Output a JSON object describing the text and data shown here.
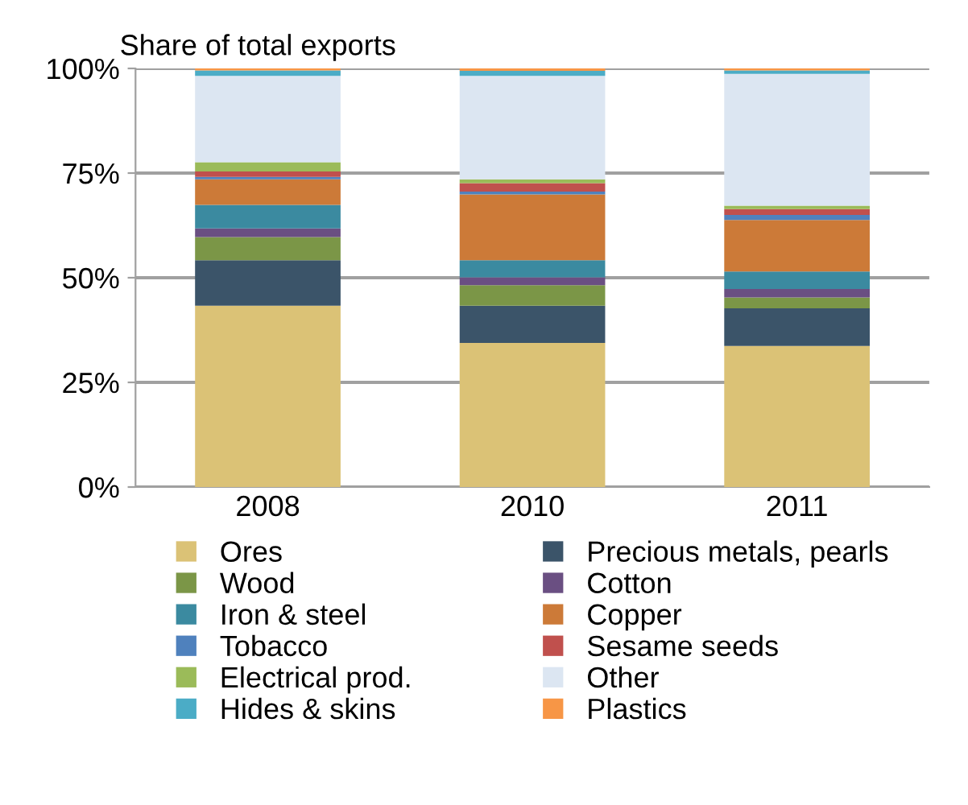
{
  "chart_data": {
    "type": "bar",
    "stacked": true,
    "title": "Share of total exports",
    "categories": [
      "2008",
      "2010",
      "2011"
    ],
    "series": [
      {
        "name": "Ores",
        "color": "#dbc276",
        "values": [
          43.3,
          34.4,
          33.7
        ]
      },
      {
        "name": "Precious metals, pearls",
        "color": "#3b5469",
        "values": [
          10.9,
          8.9,
          9.0
        ]
      },
      {
        "name": "Wood",
        "color": "#7b9647",
        "values": [
          5.5,
          4.9,
          2.6
        ]
      },
      {
        "name": "Cotton",
        "color": "#6a4f82",
        "values": [
          2.1,
          1.9,
          2.0
        ]
      },
      {
        "name": "Iron & steel",
        "color": "#3b8aa0",
        "values": [
          5.6,
          4.1,
          4.2
        ]
      },
      {
        "name": "Copper",
        "color": "#cc7a38",
        "values": [
          6.1,
          15.7,
          12.3
        ]
      },
      {
        "name": "Tobacco",
        "color": "#4f81bd",
        "values": [
          0.6,
          0.7,
          1.2
        ]
      },
      {
        "name": "Sesame seeds",
        "color": "#c0504d",
        "values": [
          1.3,
          2.0,
          1.4
        ]
      },
      {
        "name": "Electrical prod.",
        "color": "#9bbb59",
        "values": [
          2.2,
          0.9,
          0.8
        ]
      },
      {
        "name": "Other",
        "color": "#dce6f2",
        "values": [
          20.6,
          24.7,
          31.5
        ]
      },
      {
        "name": "Hides & skins",
        "color": "#4bacc6",
        "values": [
          1.3,
          1.2,
          0.8
        ]
      },
      {
        "name": "Plastics",
        "color": "#f79646",
        "values": [
          0.5,
          0.6,
          0.5
        ]
      }
    ],
    "ylim": [
      0,
      100
    ],
    "yticks": [
      {
        "value": 0,
        "label": "0%"
      },
      {
        "value": 25,
        "label": "25%"
      },
      {
        "value": 50,
        "label": "50%"
      },
      {
        "value": 75,
        "label": "75%"
      },
      {
        "value": 100,
        "label": "100%"
      }
    ],
    "grid": "y",
    "legend": "bottom"
  }
}
